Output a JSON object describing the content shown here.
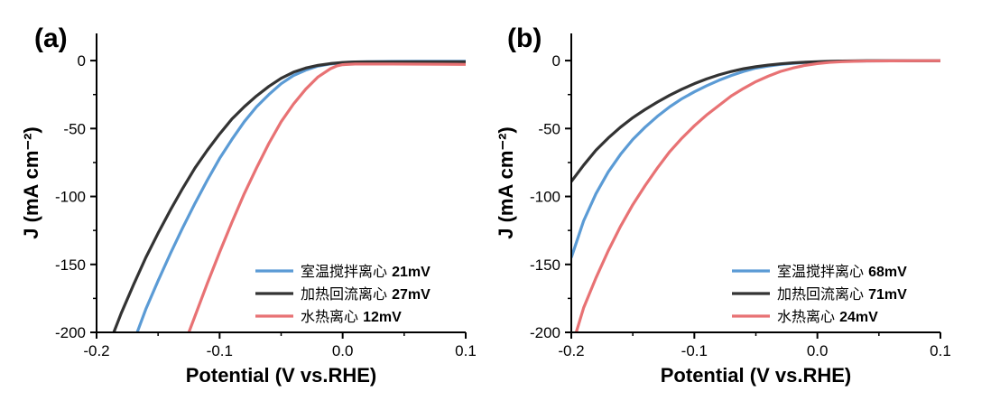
{
  "chart_data": [
    {
      "type": "line",
      "panel_label": "(a)",
      "xlabel": "Potential (V vs.RHE)",
      "ylabel": "J (mA cm⁻²)",
      "xlim": [
        -0.2,
        0.1
      ],
      "ylim": [
        -200,
        20
      ],
      "xticks": [
        -0.2,
        -0.1,
        0.0,
        0.1
      ],
      "xtick_labels": [
        "-0.2",
        "-0.1",
        "0.0",
        "0.1"
      ],
      "yticks": [
        0,
        -50,
        -100,
        -150,
        -200
      ],
      "ytick_labels": [
        "0",
        "-50",
        "-100",
        "-150",
        "-200"
      ],
      "legend_position": "bottom-right",
      "series": [
        {
          "name": "室温搅拌离心",
          "overpotential": "21mV",
          "color": "#5b9bd5",
          "x": [
            -0.167,
            -0.16,
            -0.15,
            -0.14,
            -0.13,
            -0.12,
            -0.11,
            -0.1,
            -0.09,
            -0.08,
            -0.07,
            -0.06,
            -0.05,
            -0.04,
            -0.03,
            -0.02,
            -0.01,
            0.0,
            0.01,
            0.02,
            0.04,
            0.06,
            0.08,
            0.1
          ],
          "y": [
            -200,
            -183,
            -162,
            -142,
            -123,
            -105,
            -88,
            -72,
            -58,
            -45,
            -34,
            -25,
            -17,
            -11,
            -7,
            -4,
            -2.5,
            -1.5,
            -1,
            -0.8,
            -0.6,
            -0.5,
            -0.5,
            -0.5
          ]
        },
        {
          "name": "加热回流离心",
          "overpotential": "27mV",
          "color": "#333333",
          "x": [
            -0.186,
            -0.18,
            -0.17,
            -0.16,
            -0.15,
            -0.14,
            -0.13,
            -0.12,
            -0.11,
            -0.1,
            -0.09,
            -0.08,
            -0.07,
            -0.06,
            -0.05,
            -0.04,
            -0.03,
            -0.02,
            -0.01,
            0.0,
            0.01,
            0.02,
            0.04,
            0.06,
            0.08,
            0.1
          ],
          "y": [
            -200,
            -186,
            -165,
            -145,
            -127,
            -110,
            -94,
            -79,
            -66,
            -54,
            -43,
            -34,
            -26,
            -19,
            -13,
            -8.5,
            -5.5,
            -3.5,
            -2.2,
            -1.4,
            -1,
            -0.9,
            -0.9,
            -0.9,
            -0.9,
            -0.9
          ]
        },
        {
          "name": "水热离心",
          "overpotential": "12mV",
          "color": "#e87274",
          "x": [
            -0.125,
            -0.12,
            -0.11,
            -0.1,
            -0.09,
            -0.08,
            -0.07,
            -0.06,
            -0.05,
            -0.04,
            -0.03,
            -0.02,
            -0.01,
            -0.005,
            0.0,
            0.01,
            0.02,
            0.04,
            0.06,
            0.08,
            0.1
          ],
          "y": [
            -200,
            -188,
            -164,
            -141,
            -119,
            -98,
            -79,
            -61,
            -45,
            -32,
            -21,
            -12,
            -6,
            -4,
            -3,
            -2.5,
            -2.5,
            -2.5,
            -2.6,
            -2.7,
            -2.8
          ]
        }
      ]
    },
    {
      "type": "line",
      "panel_label": "(b)",
      "xlabel": "Potential (V vs.RHE)",
      "ylabel": "J (mA cm⁻²)",
      "xlim": [
        -0.2,
        0.1
      ],
      "ylim": [
        -200,
        20
      ],
      "xticks": [
        -0.2,
        -0.1,
        0.0,
        0.1
      ],
      "xtick_labels": [
        "-0.2",
        "-0.1",
        "0.0",
        "0.1"
      ],
      "yticks": [
        0,
        -50,
        -100,
        -150,
        -200
      ],
      "ytick_labels": [
        "0",
        "-50",
        "-100",
        "-150",
        "-200"
      ],
      "legend_position": "bottom-right",
      "series": [
        {
          "name": "室温搅拌离心",
          "overpotential": "68mV",
          "color": "#5b9bd5",
          "x": [
            -0.2,
            -0.19,
            -0.18,
            -0.17,
            -0.16,
            -0.15,
            -0.14,
            -0.13,
            -0.12,
            -0.11,
            -0.1,
            -0.09,
            -0.08,
            -0.07,
            -0.06,
            -0.05,
            -0.04,
            -0.03,
            -0.02,
            -0.01,
            0.0,
            0.01,
            0.02,
            0.04,
            0.06,
            0.08,
            0.1
          ],
          "y": [
            -145,
            -118,
            -98,
            -82,
            -69,
            -58,
            -49,
            -41,
            -34,
            -28,
            -23,
            -18.5,
            -14.5,
            -11,
            -8,
            -5.5,
            -4,
            -2.8,
            -2,
            -1.4,
            -1,
            -0.7,
            -0.5,
            -0.3,
            -0.2,
            -0.1,
            -0.1
          ]
        },
        {
          "name": "加热回流离心",
          "overpotential": "71mV",
          "color": "#333333",
          "x": [
            -0.2,
            -0.19,
            -0.18,
            -0.17,
            -0.16,
            -0.15,
            -0.14,
            -0.13,
            -0.12,
            -0.11,
            -0.1,
            -0.09,
            -0.08,
            -0.07,
            -0.06,
            -0.05,
            -0.04,
            -0.03,
            -0.02,
            -0.01,
            0.0,
            0.01,
            0.02,
            0.04,
            0.06,
            0.08,
            0.1
          ],
          "y": [
            -89,
            -77,
            -66,
            -57,
            -49,
            -42,
            -36,
            -30.5,
            -25.5,
            -21,
            -17,
            -13.5,
            -10.5,
            -8,
            -6,
            -4.5,
            -3.3,
            -2.4,
            -1.7,
            -1.2,
            -0.8,
            -0.5,
            -0.3,
            -0.1,
            -0.1,
            -0.1,
            -0.1
          ]
        },
        {
          "name": "水热离心",
          "overpotential": "24mV",
          "color": "#e87274",
          "x": [
            -0.196,
            -0.19,
            -0.18,
            -0.17,
            -0.16,
            -0.15,
            -0.14,
            -0.13,
            -0.12,
            -0.11,
            -0.1,
            -0.09,
            -0.08,
            -0.07,
            -0.06,
            -0.05,
            -0.04,
            -0.03,
            -0.02,
            -0.01,
            0.0,
            0.01,
            0.02,
            0.03,
            0.04,
            0.06,
            0.08,
            0.1
          ],
          "y": [
            -200,
            -182,
            -160,
            -140,
            -122,
            -106,
            -92,
            -79,
            -67,
            -57,
            -48,
            -40,
            -33,
            -26,
            -20.5,
            -15.5,
            -11.5,
            -8,
            -5.5,
            -3.5,
            -2.2,
            -1.3,
            -0.8,
            -0.5,
            -0.3,
            -0.2,
            -0.1,
            -0.1
          ]
        }
      ]
    }
  ]
}
